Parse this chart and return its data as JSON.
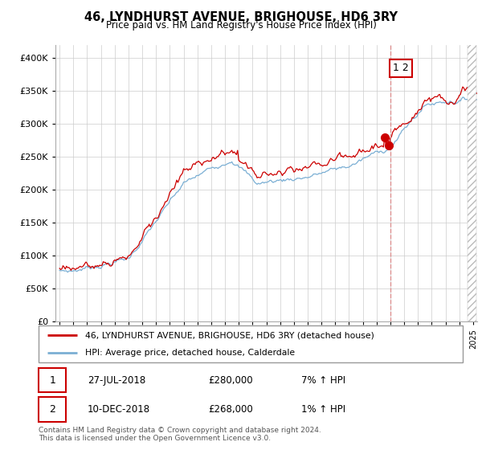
{
  "title": "46, LYNDHURST AVENUE, BRIGHOUSE, HD6 3RY",
  "subtitle": "Price paid vs. HM Land Registry's House Price Index (HPI)",
  "legend_label_red": "46, LYNDHURST AVENUE, BRIGHOUSE, HD6 3RY (detached house)",
  "legend_label_blue": "HPI: Average price, detached house, Calderdale",
  "transaction1_date": "27-JUL-2018",
  "transaction1_price": "£280,000",
  "transaction1_hpi": "7% ↑ HPI",
  "transaction2_date": "10-DEC-2018",
  "transaction2_price": "£268,000",
  "transaction2_hpi": "1% ↑ HPI",
  "footnote": "Contains HM Land Registry data © Crown copyright and database right 2024.\nThis data is licensed under the Open Government Licence v3.0.",
  "red_color": "#cc0000",
  "blue_color": "#7bafd4",
  "dashed_line_color": "#dd8888",
  "marker_color": "#cc0000",
  "grid_color": "#cccccc",
  "background_color": "#ffffff",
  "annotation_box_color": "#cc0000",
  "ylim_min": 0,
  "ylim_max": 420000,
  "start_year": 1995,
  "end_year": 2025,
  "t1_year": 2018.56,
  "t2_year": 2018.94,
  "t1_price": 280000,
  "t2_price": 268000
}
